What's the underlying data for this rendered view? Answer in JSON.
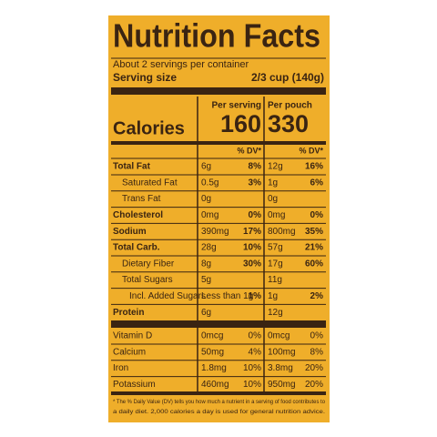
{
  "header": {
    "title": "Nutrition Facts",
    "servings": "About 2 servings per container",
    "serving_size_label": "Serving size",
    "serving_size_value": "2/3 cup (140g)"
  },
  "calories": {
    "label": "Calories",
    "per_serving_label": "Per serving",
    "per_serving": "160",
    "per_pouch_label": "Per pouch",
    "per_pouch": "330",
    "dv_serving": "% DV*",
    "dv_pouch": "% DV*"
  },
  "nutrients": [
    {
      "name": "Total Fat",
      "level": 0,
      "serving": "6g",
      "serving_dv": "8%",
      "pouch": "12g",
      "pouch_dv": "16%"
    },
    {
      "name": "Saturated Fat",
      "level": 1,
      "serving": "0.5g",
      "serving_dv": "3%",
      "pouch": "1g",
      "pouch_dv": "6%"
    },
    {
      "name": "Trans Fat",
      "level": 1,
      "serving": "0g",
      "pouch": "0g"
    },
    {
      "name": "Cholesterol",
      "level": 0,
      "serving": "0mg",
      "serving_dv": "0%",
      "pouch": "0mg",
      "pouch_dv": "0%"
    },
    {
      "name": "Sodium",
      "level": 0,
      "serving": "390mg",
      "serving_dv": "17%",
      "pouch": "800mg",
      "pouch_dv": "35%"
    },
    {
      "name": "Total Carb.",
      "level": 0,
      "serving": "28g",
      "serving_dv": "10%",
      "pouch": "57g",
      "pouch_dv": "21%"
    },
    {
      "name": "Dietary Fiber",
      "level": 1,
      "serving": "8g",
      "serving_dv": "30%",
      "pouch": "17g",
      "pouch_dv": "60%"
    },
    {
      "name": "Total Sugars",
      "level": 1,
      "serving": "5g",
      "pouch": "11g"
    },
    {
      "name": "Incl. Added Sugars",
      "level": 2,
      "serving": "Less than 1g",
      "serving_dv": "1%",
      "pouch": "1g",
      "pouch_dv": "2%"
    },
    {
      "name": "Protein",
      "level": 0,
      "serving": "6g",
      "pouch": "12g"
    }
  ],
  "vitamins": [
    {
      "name": "Vitamin D",
      "serving": "0mcg",
      "serving_dv": "0%",
      "pouch": "0mcg",
      "pouch_dv": "0%"
    },
    {
      "name": "Calcium",
      "serving": "50mg",
      "serving_dv": "4%",
      "pouch": "100mg",
      "pouch_dv": "8%"
    },
    {
      "name": "Iron",
      "serving": "1.8mg",
      "serving_dv": "10%",
      "pouch": "3.8mg",
      "pouch_dv": "20%"
    },
    {
      "name": "Potassium",
      "serving": "460mg",
      "serving_dv": "10%",
      "pouch": "950mg",
      "pouch_dv": "20%"
    }
  ],
  "footnote": [
    "* The % Daily Value (DV) tells you how much a nutrient in a serving of food contributes to",
    "a daily diet. 2,000 calories a day is used for general nutrition advice."
  ]
}
